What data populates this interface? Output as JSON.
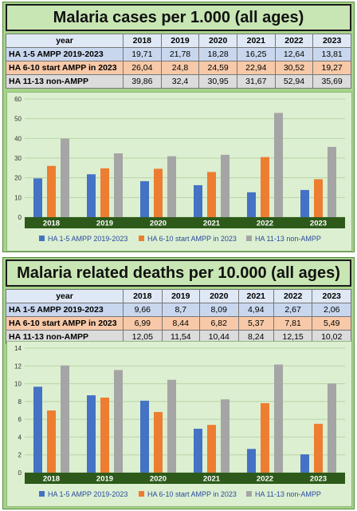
{
  "chart_data": [
    {
      "type": "bar",
      "title": "Malaria cases per 1.000 (all ages)",
      "table_header": "year",
      "categories": [
        "2018",
        "2019",
        "2020",
        "2021",
        "2022",
        "2023"
      ],
      "value_labels": [
        [
          "19,71",
          "21,78",
          "18,28",
          "16,25",
          "12,64",
          "13,81"
        ],
        [
          "26,04",
          "24,8",
          "24,59",
          "22,94",
          "30,52",
          "19,27"
        ],
        [
          "39,86",
          "32,4",
          "30,95",
          "31,67",
          "52,94",
          "35,69"
        ]
      ],
      "series": [
        {
          "name": "HA 1-5 AMPP 2019-2023",
          "values": [
            19.71,
            21.78,
            18.28,
            16.25,
            12.64,
            13.81
          ]
        },
        {
          "name": "HA 6-10 start AMPP in 2023",
          "values": [
            26.04,
            24.8,
            24.59,
            22.94,
            30.52,
            19.27
          ]
        },
        {
          "name": "HA 11-13 non-AMPP",
          "values": [
            39.86,
            32.4,
            30.95,
            31.67,
            52.94,
            35.69
          ]
        }
      ],
      "series_colors": [
        "#4472c4",
        "#ed7d31",
        "#a5a5a5"
      ],
      "ylim": [
        0,
        60
      ],
      "yticks": [
        0,
        10,
        20,
        30,
        40,
        50,
        60
      ],
      "grid": true,
      "legend": "bottom"
    },
    {
      "type": "bar",
      "title": "Malaria related deaths per 10.000 (all ages)",
      "table_header": "year",
      "categories": [
        "2018",
        "2019",
        "2020",
        "2021",
        "2022",
        "2023"
      ],
      "value_labels": [
        [
          "9,66",
          "8,7",
          "8,09",
          "4,94",
          "2,67",
          "2,06"
        ],
        [
          "6,99",
          "8,44",
          "6,82",
          "5,37",
          "7,81",
          "5,49"
        ],
        [
          "12,05",
          "11,54",
          "10,44",
          "8,24",
          "12,15",
          "10,02"
        ]
      ],
      "series": [
        {
          "name": "HA 1-5 AMPP 2019-2023",
          "values": [
            9.66,
            8.7,
            8.09,
            4.94,
            2.67,
            2.06
          ]
        },
        {
          "name": "HA 6-10 start AMPP in 2023",
          "values": [
            6.99,
            8.44,
            6.82,
            5.37,
            7.81,
            5.49
          ]
        },
        {
          "name": "HA 11-13 non-AMPP",
          "values": [
            12.05,
            11.54,
            10.44,
            8.24,
            12.15,
            10.02
          ]
        }
      ],
      "series_colors": [
        "#4472c4",
        "#ed7d31",
        "#a5a5a5"
      ],
      "ylim": [
        0,
        14
      ],
      "yticks": [
        0,
        2,
        4,
        6,
        8,
        10,
        12,
        14
      ],
      "grid": true,
      "legend": "bottom"
    }
  ]
}
